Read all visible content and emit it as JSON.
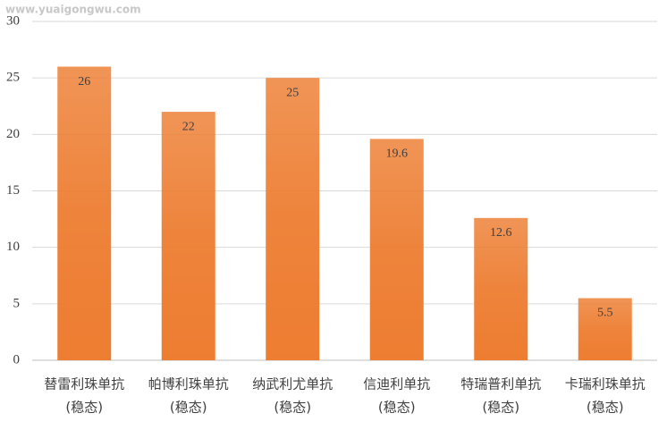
{
  "chart_data": {
    "type": "bar",
    "watermark": "www.yuaigongwu.com",
    "categories": [
      [
        "替雷利珠单抗",
        "(稳态)"
      ],
      [
        "帕博利珠单抗",
        "(稳态)"
      ],
      [
        "纳武利尤单抗",
        "(稳态)"
      ],
      [
        "信迪利单抗",
        "(稳态)"
      ],
      [
        "特瑞普利单抗",
        "(稳态)"
      ],
      [
        "卡瑞利珠单抗",
        "(稳态)"
      ]
    ],
    "values": [
      26,
      22,
      25,
      19.6,
      12.6,
      5.5
    ],
    "color": "#ed7d31",
    "ylim": [
      0,
      30
    ],
    "yticks": [
      0,
      5,
      10,
      15,
      20,
      25,
      30
    ],
    "grid": true
  }
}
